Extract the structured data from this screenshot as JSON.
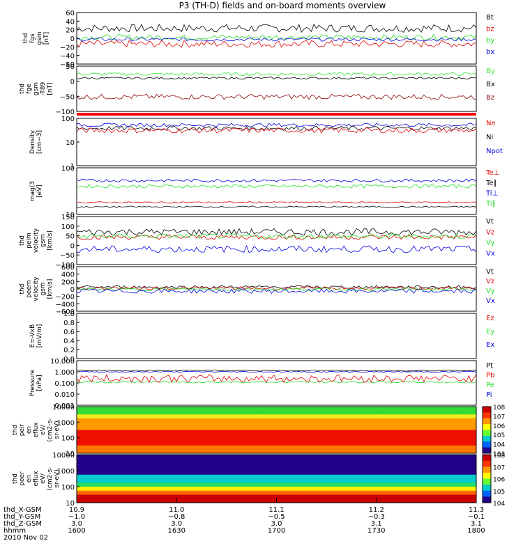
{
  "title": "P3 (TH-D) fields and on-board moments overview",
  "date_label": "2010 Nov 02",
  "colors": {
    "black": "#000000",
    "red": "#e00000",
    "green": "#22dd22",
    "blue": "#0000e0",
    "darkred": "#8b0000",
    "brightgreen": "#33ee33"
  },
  "chart_data": [
    {
      "type": "line",
      "ylabel": [
        "thd",
        "fgs",
        "gsm",
        "[nT]"
      ],
      "ylim": [
        -50,
        65
      ],
      "yticks": [
        "60",
        "40",
        "20",
        "0",
        "−20",
        "−40",
        "−50"
      ],
      "legend": [
        {
          "name": "Bt",
          "color": "black"
        },
        {
          "name": "bz",
          "color": "red"
        },
        {
          "name": "by",
          "color": "green"
        },
        {
          "name": "bx",
          "color": "blue"
        }
      ],
      "series": [
        {
          "name": "Bt",
          "color": "black",
          "base": 30,
          "noise": 9
        },
        {
          "name": "bz",
          "color": "red",
          "base": -5,
          "noise": 8
        },
        {
          "name": "by",
          "color": "green",
          "base": 10,
          "noise": 6
        },
        {
          "name": "bx",
          "color": "blue",
          "base": 5,
          "noise": 4
        }
      ]
    },
    {
      "type": "line",
      "ylabel": [
        "thd",
        "fge",
        "gsm",
        "-T89",
        "[nT]"
      ],
      "ylim": [
        -120,
        50
      ],
      "yticks": [
        "50",
        "0",
        "−50",
        "−100"
      ],
      "legend": [
        {
          "name": "By",
          "color": "brightgreen"
        },
        {
          "name": "Bx",
          "color": "black"
        },
        {
          "name": "Bz",
          "color": "darkred"
        }
      ],
      "series": [
        {
          "name": "By",
          "color": "brightgreen",
          "base": 20,
          "noise": 6
        },
        {
          "name": "Bx",
          "color": "black",
          "base": 5,
          "noise": 4
        },
        {
          "name": "Bz",
          "color": "darkred",
          "base": -65,
          "noise": 10
        }
      ]
    },
    {
      "type": "line",
      "log": true,
      "ylabel": [
        "Density",
        "[cm−3]"
      ],
      "ylim": [
        1,
        140
      ],
      "yticks": [
        "100",
        "10",
        "1"
      ],
      "legend": [
        {
          "name": "Ne",
          "color": "red"
        },
        {
          "name": "Ni",
          "color": "black"
        },
        {
          "name": "Npot",
          "color": "blue"
        }
      ],
      "series": [
        {
          "name": "Npot",
          "color": "blue",
          "base": 70,
          "noise": 0.08
        },
        {
          "name": "Ni",
          "color": "black",
          "base": 50,
          "noise": 0.1
        },
        {
          "name": "Ne",
          "color": "red",
          "base": 40,
          "noise": 0.12
        }
      ]
    },
    {
      "type": "line",
      "log": true,
      "ylabel": [
        "mag(3",
        "[eV]"
      ],
      "ylim": [
        10,
        700
      ],
      "yticks": [
        "100",
        "10"
      ],
      "legend": [
        {
          "name": "Te⊥",
          "color": "red"
        },
        {
          "name": "Te∥",
          "color": "black"
        },
        {
          "name": "Ti⊥",
          "color": "blue"
        },
        {
          "name": "Ti∥",
          "color": "green"
        }
      ],
      "series": [
        {
          "name": "Ti⊥",
          "color": "blue",
          "base": 220,
          "noise": 0.06
        },
        {
          "name": "Ti∥",
          "color": "green",
          "base": 130,
          "noise": 0.07
        },
        {
          "name": "Te⊥",
          "color": "red",
          "base": 30,
          "noise": 0.03
        },
        {
          "name": "Te∥",
          "color": "black",
          "base": 20,
          "noise": 0.03
        }
      ]
    },
    {
      "type": "line",
      "ylabel": [
        "thd",
        "peim",
        "velocity",
        "gsm",
        "[km/s]"
      ],
      "ylim": [
        -120,
        160
      ],
      "yticks": [
        "150",
        "100",
        "50",
        "0",
        "−50",
        "−100"
      ],
      "legend": [
        {
          "name": "Vt",
          "color": "black"
        },
        {
          "name": "Vz",
          "color": "red"
        },
        {
          "name": "Vy",
          "color": "green"
        },
        {
          "name": "Vx",
          "color": "blue"
        }
      ],
      "series": [
        {
          "name": "Vt",
          "color": "black",
          "base": 70,
          "noise": 20
        },
        {
          "name": "Vz",
          "color": "red",
          "base": 40,
          "noise": 15
        },
        {
          "name": "Vy",
          "color": "green",
          "base": 45,
          "noise": 15
        },
        {
          "name": "Vx",
          "color": "blue",
          "base": -30,
          "noise": 20
        }
      ]
    },
    {
      "type": "line",
      "ylabel": [
        "thd",
        "peem",
        "velocity",
        "gsm",
        "[km/s]"
      ],
      "ylim": [
        -600,
        600
      ],
      "yticks": [
        "600",
        "400",
        "200",
        "0",
        "−200",
        "−400",
        "−600"
      ],
      "legend": [
        {
          "name": "Vt",
          "color": "black"
        },
        {
          "name": "Vz",
          "color": "red"
        },
        {
          "name": "Vy",
          "color": "green"
        },
        {
          "name": "Vx",
          "color": "blue"
        }
      ],
      "series": [
        {
          "name": "Vt",
          "color": "black",
          "base": 50,
          "noise": 45
        },
        {
          "name": "Vz",
          "color": "red",
          "base": 20,
          "noise": 40
        },
        {
          "name": "Vy",
          "color": "green",
          "base": -10,
          "noise": 40
        },
        {
          "name": "Vx",
          "color": "blue",
          "base": -60,
          "noise": 60
        }
      ]
    },
    {
      "type": "line",
      "ylabel": [
        "E=-VxB",
        "[mV/m]"
      ],
      "ylim": [
        0,
        1
      ],
      "yticks": [
        "1.0",
        "0.8",
        "0.6",
        "0.4",
        "0.2",
        "0.0"
      ],
      "legend": [
        {
          "name": "Ez",
          "color": "red"
        },
        {
          "name": "Ey",
          "color": "green"
        },
        {
          "name": "Ex",
          "color": "blue"
        }
      ],
      "series": []
    },
    {
      "type": "line",
      "log": true,
      "ylabel": [
        "Pressure",
        "[nPa]"
      ],
      "ylim": [
        0.001,
        10
      ],
      "yticks": [
        "10.000",
        "1.000",
        "0.100",
        "0.010",
        "0.001"
      ],
      "legend": [
        {
          "name": "Pt",
          "color": "black"
        },
        {
          "name": "Pb",
          "color": "red"
        },
        {
          "name": "Pe",
          "color": "green"
        },
        {
          "name": "Pi",
          "color": "blue"
        }
      ],
      "series": [
        {
          "name": "Pt",
          "color": "black",
          "base": 1.3,
          "noise": 0.05
        },
        {
          "name": "Pi",
          "color": "blue",
          "base": 1.0,
          "noise": 0.05
        },
        {
          "name": "Pe",
          "color": "green",
          "base": 0.12,
          "noise": 0.08
        },
        {
          "name": "Pb",
          "color": "red",
          "base": 0.25,
          "noise": 0.35
        }
      ]
    },
    {
      "type": "heatmap",
      "ylabel": [
        "thd",
        "peir",
        "en",
        "eflux",
        "eV/",
        "(cm2-s-",
        "sr-eV)"
      ],
      "ylim": [
        5,
        20000
      ],
      "yticks": [
        "10000",
        "1000",
        "100",
        "10"
      ],
      "colorbar": [
        "108",
        "107",
        "106",
        "105",
        "104",
        "103"
      ]
    },
    {
      "type": "heatmap",
      "ylabel": [
        "thd",
        "peer",
        "en",
        "eflux",
        "eV/",
        "(cm2-s-",
        "sr-eV)"
      ],
      "ylim": [
        5,
        20000
      ],
      "yticks": [
        "10000",
        "1000",
        "100",
        "10"
      ],
      "colorbar": [
        "108",
        "107",
        "106",
        "105",
        "104"
      ]
    }
  ],
  "x_axis": {
    "row_labels": [
      "thd_X-GSM",
      "thd_Y-GSM",
      "thd_Z-GSM",
      "hhmm"
    ],
    "ticks": [
      {
        "values": [
          "10.9",
          "−1.0",
          "3.0",
          "1600"
        ]
      },
      {
        "values": [
          "11.0",
          "−0.8",
          "3.0",
          "1630"
        ]
      },
      {
        "values": [
          "11.1",
          "−0.5",
          "3.0",
          "1700"
        ]
      },
      {
        "values": [
          "11.2",
          "−0.3",
          "3.1",
          "1730"
        ]
      },
      {
        "values": [
          "11.3",
          "−0.1",
          "3.1",
          "1800"
        ]
      }
    ]
  }
}
